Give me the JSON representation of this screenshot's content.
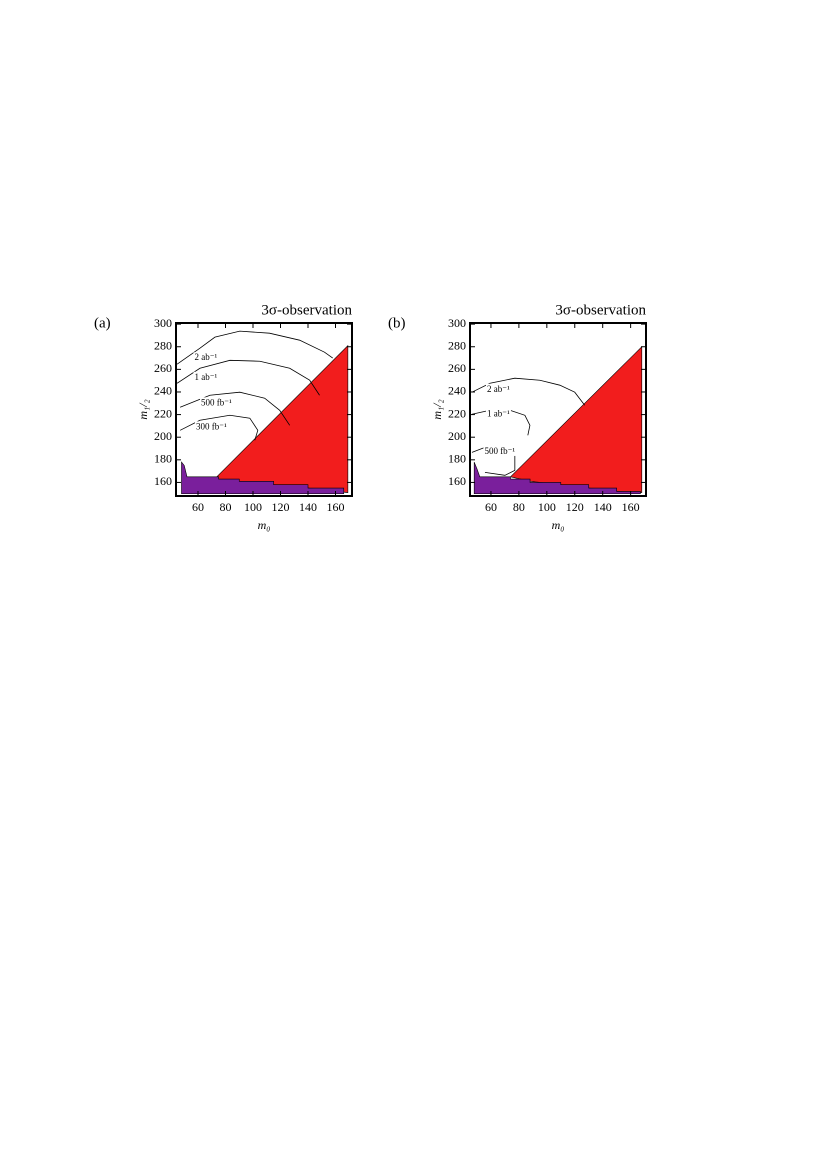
{
  "chart_data": [
    {
      "type": "contour",
      "panel": "(a)",
      "title": "3σ-observation",
      "xlabel": "m₀",
      "ylabel": "m₁/₂",
      "xlim": [
        44,
        172
      ],
      "ylim": [
        148,
        301
      ],
      "xticks": [
        60,
        80,
        100,
        120,
        140,
        160
      ],
      "yticks": [
        160,
        180,
        200,
        220,
        240,
        260,
        280,
        300
      ],
      "regions": [
        {
          "color": "#f21d1d",
          "x": [
            72,
            169,
            169,
            140,
            115,
            90
          ],
          "y": [
            163,
            281,
            151,
            155,
            158,
            161
          ]
        },
        {
          "color": "#7a1f9c",
          "x": [
            48,
            50,
            52,
            75,
            75,
            90,
            90,
            115,
            115,
            140,
            140,
            166,
            166,
            48
          ],
          "y": [
            178,
            175,
            165,
            165,
            163,
            163,
            161,
            161,
            158,
            158,
            155,
            155,
            150,
            150
          ]
        }
      ],
      "contours": [
        {
          "name": "2 ab⁻¹",
          "x": [
            44.8,
            61.4,
            72.3,
            90.4,
            112,
            133.9,
            152,
            158
          ],
          "y": [
            264.6,
            278.7,
            288.5,
            293.8,
            292,
            285.8,
            275.2,
            270
          ]
        },
        {
          "name": "1 ab⁻¹",
          "x": [
            44.8,
            61.4,
            83.2,
            105,
            126.7,
            141.2,
            148.4
          ],
          "y": [
            247.7,
            261,
            268,
            267.2,
            261,
            250.4,
            237.1
          ]
        },
        {
          "name": "500 fb⁻¹",
          "x": [
            47,
            68.7,
            90.4,
            108.5,
            119.4,
            126.7
          ],
          "y": [
            226.5,
            237.1,
            239.8,
            234.5,
            223.8,
            210.5
          ]
        },
        {
          "name": "300 fb⁻¹",
          "x": [
            47,
            61.4,
            83.2,
            97.7,
            103.5,
            101.3
          ],
          "y": [
            206.1,
            215,
            219.4,
            216.8,
            206.1,
            197.3
          ]
        }
      ]
    },
    {
      "type": "contour",
      "panel": "(b)",
      "title": "3σ-observation",
      "xlabel": "m₀",
      "ylabel": "m₁/₂",
      "xlim": [
        45,
        171
      ],
      "ylim": [
        148,
        301
      ],
      "xticks": [
        60,
        80,
        100,
        120,
        140,
        160
      ],
      "yticks": [
        160,
        180,
        200,
        220,
        240,
        260,
        280,
        300
      ],
      "regions": [
        {
          "color": "#f21d1d",
          "x": [
            74,
            168,
            168,
            150,
            130,
            110,
            88
          ],
          "y": [
            165,
            280,
            151,
            152,
            155,
            158,
            161
          ]
        },
        {
          "color": "#7a1f9c",
          "x": [
            48,
            50,
            52,
            74,
            74,
            88,
            88,
            110,
            110,
            130,
            130,
            150,
            150,
            167,
            167,
            48
          ],
          "y": [
            178,
            172,
            165,
            165,
            163,
            163,
            160,
            160,
            158,
            158,
            155,
            155,
            152,
            152,
            150,
            150
          ]
        }
      ],
      "contours": [
        {
          "name": "2 ab⁻¹",
          "x": [
            46.4,
            59.3,
            77.1,
            95,
            109.3,
            120,
            127.1
          ],
          "y": [
            239.8,
            247.7,
            252.2,
            250.4,
            246,
            239.8,
            228.3
          ]
        },
        {
          "name": "1 ab⁻¹",
          "x": [
            46.4,
            59.3,
            73.6,
            84.3,
            87.9,
            86.4
          ],
          "y": [
            220.3,
            223.8,
            223.8,
            219.4,
            210.5,
            201.7
          ]
        },
        {
          "name": "500 fb⁻¹",
          "x": [
            46.4,
            55.7,
            70,
            77.1,
            77.1,
            70,
            55.7
          ],
          "y": [
            186.6,
            191,
            191,
            184,
            170.7,
            166.3,
            168.9
          ]
        }
      ]
    }
  ]
}
